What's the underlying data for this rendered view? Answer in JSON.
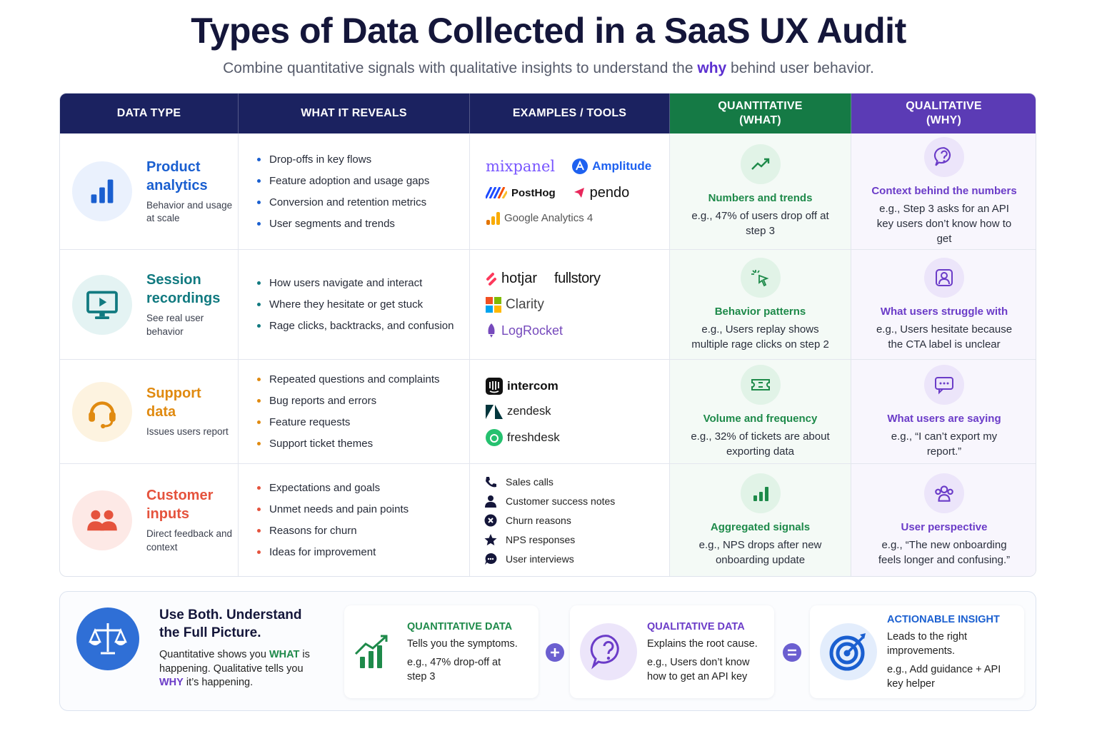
{
  "header": {
    "title": "Types of Data Collected in a SaaS UX Audit",
    "subtitle": [
      "Combine quantitative signals with qualitative insights to understand the ",
      "why",
      " behind user behavior."
    ]
  },
  "table": {
    "columns": [
      {
        "label": "DATA TYPE"
      },
      {
        "label": "WHAT IT REVEALS"
      },
      {
        "label": "EXAMPLES / TOOLS"
      },
      {
        "label": "QUANTITATIVE",
        "sub": "(WHAT)"
      },
      {
        "label": "QUALITATIVE",
        "sub": "(WHY)"
      }
    ],
    "rows": [
      {
        "title": "Product analytics",
        "description": "Behavior and usage at scale",
        "reveals": [
          "Drop-offs in key flows",
          "Feature adoption and usage gaps",
          "Conversion and retention metrics",
          "User segments and trends"
        ],
        "tools": [
          "mixpanel",
          "Amplitude",
          "PostHog",
          "pendo",
          "Google Analytics 4"
        ],
        "quantitative": {
          "heading": "Numbers and trends",
          "example": "e.g., 47% of users drop off at step 3"
        },
        "qualitative": {
          "heading": "Context behind the numbers",
          "example": "e.g., Step 3 asks for an API key users don’t know how to get"
        }
      },
      {
        "title": "Session recordings",
        "description": "See real user behavior",
        "reveals": [
          "How users navigate and interact",
          "Where they hesitate or get stuck",
          "Rage clicks, backtracks, and confusion"
        ],
        "tools": [
          "hotjar",
          "fullstory",
          "Clarity",
          "LogRocket"
        ],
        "quantitative": {
          "heading": "Behavior patterns",
          "example": "e.g., Users replay shows multiple rage clicks on step 2"
        },
        "qualitative": {
          "heading": "What users struggle with",
          "example": "e.g., Users hesitate because the CTA label is unclear"
        }
      },
      {
        "title": "Support data",
        "description": "Issues users report",
        "reveals": [
          "Repeated questions and complaints",
          "Bug reports and errors",
          "Feature requests",
          "Support ticket themes"
        ],
        "tools": [
          "intercom",
          "zendesk",
          "freshdesk"
        ],
        "quantitative": {
          "heading": "Volume and frequency",
          "example": "e.g., 32% of tickets are about exporting data"
        },
        "qualitative": {
          "heading": "What users are saying",
          "example": "e.g., “I can’t export my report.”"
        }
      },
      {
        "title": "Customer inputs",
        "description": "Direct feedback and context",
        "reveals": [
          "Expectations and goals",
          "Unmet needs and pain points",
          "Reasons for churn",
          "Ideas for improvement"
        ],
        "tools": [
          "Sales calls",
          "Customer success notes",
          "Churn reasons",
          "NPS responses",
          "User interviews"
        ],
        "quantitative": {
          "heading": "Aggregated signals",
          "example": "e.g., NPS drops after new onboarding update"
        },
        "qualitative": {
          "heading": "User perspective",
          "example": "e.g., “The new onboarding feels longer and confusing.”"
        }
      }
    ]
  },
  "footer": {
    "title": "Use Both. Understand the Full Picture.",
    "body": [
      "Quantitative shows you ",
      "WHAT",
      " is happening. Qualitative tells you ",
      "WHY",
      " it’s happening."
    ],
    "cards": [
      {
        "heading": "QUANTITATIVE DATA",
        "text": "Tells you the symptoms.",
        "example": "e.g., 47% drop-off at step 3"
      },
      {
        "heading": "QUALITATIVE DATA",
        "text": "Explains the root cause.",
        "example": "e.g., Users don’t know how to get an API key"
      },
      {
        "heading": "ACTIONABLE INSIGHT",
        "text": "Leads to the right improvements.",
        "example": "e.g., Add guidance + API key helper"
      }
    ]
  }
}
